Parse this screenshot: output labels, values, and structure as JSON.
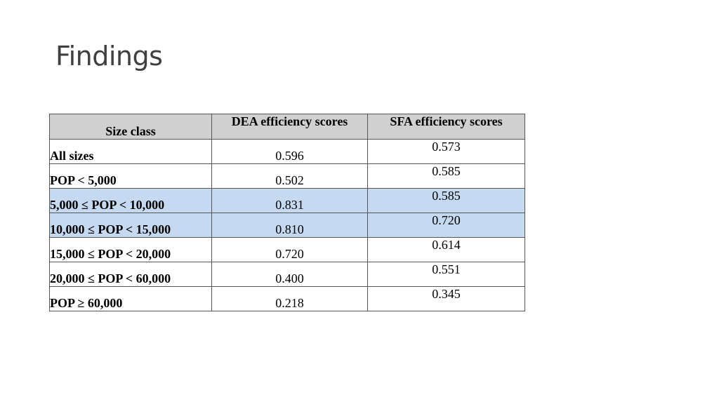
{
  "slide": {
    "title": "Findings"
  },
  "table": {
    "headers": {
      "size_class": "Size class",
      "dea": "DEA efficiency scores",
      "sfa": "SFA efficiency scores"
    },
    "rows": [
      {
        "size_class": "All sizes",
        "dea": "0.596",
        "sfa": "0.573",
        "highlighted": false
      },
      {
        "size_class": "POP < 5,000",
        "dea": "0.502",
        "sfa": "0.585",
        "highlighted": false
      },
      {
        "size_class": "5,000 ≤ POP < 10,000",
        "dea": "0.831",
        "sfa": "0.585",
        "highlighted": true
      },
      {
        "size_class": "10,000 ≤ POP < 15,000",
        "dea": "0.810",
        "sfa": "0.720",
        "highlighted": true
      },
      {
        "size_class": "15,000 ≤ POP < 20,000",
        "dea": "0.720",
        "sfa": "0.614",
        "highlighted": false
      },
      {
        "size_class": "20,000 ≤ POP < 60,000",
        "dea": "0.400",
        "sfa": "0.551",
        "highlighted": false
      },
      {
        "size_class": "POP ≥ 60,000",
        "dea": "0.218",
        "sfa": "0.345",
        "highlighted": false
      }
    ],
    "highlight_color": "#c5d9f1",
    "header_color": "#d0d0d0"
  }
}
